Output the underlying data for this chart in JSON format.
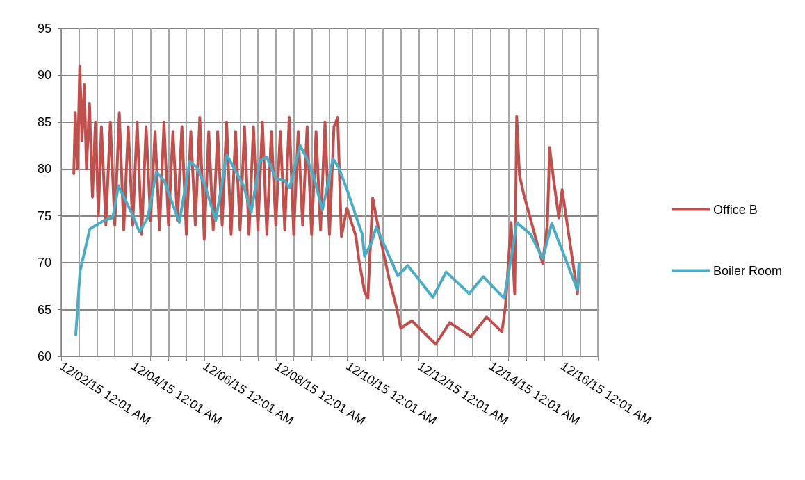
{
  "chart_data": {
    "type": "line",
    "legend": "right",
    "grid": true,
    "marker": "none",
    "line_style": "solid",
    "xlim": [
      "--12-02T00:01",
      "--12-17T00:01"
    ],
    "xticks": [
      {
        "value": "--12-02T00:01",
        "label": "12/02/15 12:01 AM"
      },
      {
        "value": "--12-02T12:01",
        "label": null
      },
      {
        "value": "--12-03T00:01",
        "label": null
      },
      {
        "value": "--12-03T12:01",
        "label": null
      },
      {
        "value": "--12-04T00:01",
        "label": "12/04/15 12:01 AM"
      },
      {
        "value": "--12-04T12:01",
        "label": null
      },
      {
        "value": "--12-05T00:01",
        "label": null
      },
      {
        "value": "--12-05T12:01",
        "label": null
      },
      {
        "value": "--12-06T00:01",
        "label": "12/06/15 12:01 AM"
      },
      {
        "value": "--12-06T12:01",
        "label": null
      },
      {
        "value": "--12-07T00:01",
        "label": null
      },
      {
        "value": "--12-07T12:01",
        "label": null
      },
      {
        "value": "--12-08T00:01",
        "label": "12/08/15 12:01 AM"
      },
      {
        "value": "--12-08T12:01",
        "label": null
      },
      {
        "value": "--12-09T00:01",
        "label": null
      },
      {
        "value": "--12-09T12:01",
        "label": null
      },
      {
        "value": "--12-10T00:01",
        "label": "12/10/15 12:01 AM"
      },
      {
        "value": "--12-10T12:01",
        "label": null
      },
      {
        "value": "--12-11T00:01",
        "label": null
      },
      {
        "value": "--12-11T12:01",
        "label": null
      },
      {
        "value": "--12-12T00:01",
        "label": "12/12/15 12:01 AM"
      },
      {
        "value": "--12-12T12:01",
        "label": null
      },
      {
        "value": "--12-13T00:01",
        "label": null
      },
      {
        "value": "--12-13T12:01",
        "label": null
      },
      {
        "value": "--12-14T00:01",
        "label": "12/14/15 12:01 AM"
      },
      {
        "value": "--12-14T12:01",
        "label": null
      },
      {
        "value": "--12-15T00:01",
        "label": null
      },
      {
        "value": "--12-15T12:01",
        "label": null
      },
      {
        "value": "--12-16T00:01",
        "label": "12/16/15 12:01 AM"
      },
      {
        "value": "--12-16T12:01",
        "label": null
      },
      {
        "value": "--12-17T00:01",
        "label": null
      }
    ],
    "ylim": [
      60,
      95
    ],
    "yticks": [
      60,
      65,
      70,
      75,
      80,
      85,
      90,
      95
    ],
    "series": [
      {
        "name": "Office B",
        "color": "#c0504d",
        "x": [
          "--12-02T08:30",
          "--12-02T09:30",
          "--12-02T11:00",
          "--12-02T12:30",
          "--12-02T14:00",
          "--12-02T15:30",
          "--12-02T17:00",
          "--12-02T19:00",
          "--12-02T21:00",
          "--12-02T23:00",
          "--12-03T01:00",
          "--12-03T03:00",
          "--12-03T06:00",
          "--12-03T09:00",
          "--12-03T12:00",
          "--12-03T15:00",
          "--12-03T18:00",
          "--12-03T21:00",
          "--12-04T00:00",
          "--12-04T03:00",
          "--12-04T06:00",
          "--12-04T09:00",
          "--12-04T12:00",
          "--12-04T15:00",
          "--12-04T18:00",
          "--12-04T21:00",
          "--12-05T00:00",
          "--12-05T03:00",
          "--12-05T06:00",
          "--12-05T09:00",
          "--12-05T12:00",
          "--12-05T15:00",
          "--12-05T18:00",
          "--12-05T21:00",
          "--12-06T00:00",
          "--12-06T03:00",
          "--12-06T06:00",
          "--12-06T09:00",
          "--12-06T12:00",
          "--12-06T15:00",
          "--12-06T18:00",
          "--12-06T21:00",
          "--12-07T00:00",
          "--12-07T03:00",
          "--12-07T06:00",
          "--12-07T09:00",
          "--12-07T12:00",
          "--12-07T15:00",
          "--12-07T18:00",
          "--12-07T21:00",
          "--12-08T00:00",
          "--12-08T03:00",
          "--12-08T06:00",
          "--12-08T09:00",
          "--12-08T12:00",
          "--12-08T15:00",
          "--12-08T18:00",
          "--12-08T21:00",
          "--12-09T00:00",
          "--12-09T03:00",
          "--12-09T06:00",
          "--12-09T09:00",
          "--12-09T12:00",
          "--12-09T15:00",
          "--12-09T17:30",
          "--12-09T20:00",
          "--12-09T23:45",
          "--12-10T05:45",
          "--12-10T07:40",
          "--12-10T11:30",
          "--12-10T13:45",
          "--12-10T17:00",
          "--12-10T21:50",
          "--12-11T03:50",
          "--12-11T08:40",
          "--12-11T11:50",
          "--12-11T19:15",
          "--12-12T11:15",
          "--12-12T20:40",
          "--12-13T10:45",
          "--12-13T21:25",
          "--12-14T07:40",
          "--12-14T10:05",
          "--12-14T13:50",
          "--12-14T16:15",
          "--12-14T17:35",
          "--12-14T19:30",
          "--12-14T22:20",
          "--12-15T11:00",
          "--12-15T14:10",
          "--12-15T15:40",
          "--12-15T18:00",
          "--12-15T21:50",
          "--12-16T00:05",
          "--12-16T10:20",
          "--12-16T11:20"
        ],
        "values": [
          79.5,
          86,
          80,
          91,
          83,
          89,
          80,
          87,
          77,
          85,
          75,
          84.5,
          74,
          85,
          74,
          86,
          73.5,
          84.5,
          74,
          85,
          73,
          84.5,
          74.5,
          84,
          73.5,
          85,
          74,
          84,
          74.5,
          84.5,
          73,
          84,
          74,
          85.5,
          72.5,
          84,
          73.5,
          84,
          74,
          85,
          73,
          84,
          73.5,
          84.5,
          73,
          84.5,
          73.5,
          85,
          73,
          84,
          74,
          84,
          73.5,
          85.5,
          73,
          84,
          74,
          84.5,
          73,
          84,
          73.5,
          85,
          73,
          84.5,
          85.5,
          72.8,
          75.8,
          72.8,
          70.4,
          66.9,
          66.2,
          76.9,
          72.8,
          68.4,
          65.4,
          63,
          63.8,
          61.3,
          63.6,
          62.1,
          64.2,
          62.6,
          65.4,
          74.3,
          66.7,
          85.6,
          79.3,
          77.3,
          69.9,
          74.1,
          82.3,
          79.3,
          74.8,
          77.8,
          66.7,
          68.9
        ]
      },
      {
        "name": "Boiler Room",
        "color": "#4bacc6",
        "x": [
          "--12-02T09:50",
          "--12-02T12:40",
          "--12-02T19:15",
          "--12-03T04:35",
          "--12-03T10:40",
          "--12-03T14:25",
          "--12-03T23:20",
          "--12-04T04:30",
          "--12-04T10:10",
          "--12-04T15:50",
          "--12-04T20:55",
          "--12-05T01:35",
          "--12-05T07:15",
          "--12-05T14:15",
          "--12-05T18:55",
          "--12-06T01:00",
          "--12-06T07:40",
          "--12-06T15:05",
          "--12-06T19:40",
          "--12-07T02:20",
          "--12-07T07:30",
          "--12-07T13:10",
          "--12-07T17:50",
          "--12-08T00:00",
          "--12-08T05:35",
          "--12-08T09:20",
          "--12-08T16:20",
          "--12-08T20:35",
          "--12-09T01:15",
          "--12-09T07:15",
          "--12-09T14:20",
          "--12-09T18:05",
          "--12-09T23:45",
          "--12-10T10:00",
          "--12-10T11:30",
          "--12-10T16:05",
          "--12-10T19:25",
          "--12-11T09:50",
          "--12-11T16:30",
          "--12-12T09:20",
          "--12-12T18:15",
          "--12-13T09:45",
          "--12-13T19:10",
          "--12-14T09:10",
          "--12-14T14:50",
          "--12-14T17:35",
          "--12-15T03:05",
          "--12-15T11:00",
          "--12-15T17:05",
          "--12-16T10:20",
          "--12-16T11:20"
        ],
        "values": [
          62.3,
          69.1,
          73.6,
          74.5,
          74.8,
          78.2,
          75.3,
          73.3,
          74.8,
          79.7,
          78.8,
          76.8,
          74.3,
          80.8,
          80.2,
          78,
          74.5,
          81.5,
          80.2,
          78.2,
          75.4,
          80.8,
          81.3,
          79,
          78.8,
          78,
          82.5,
          81.2,
          79.3,
          75.6,
          81.1,
          80.2,
          77.8,
          73,
          70.7,
          72.1,
          73.8,
          68.6,
          69.7,
          66.3,
          69,
          66.7,
          68.5,
          66.2,
          71.4,
          74.3,
          73,
          70.4,
          74.2,
          67.1,
          69.9
        ]
      }
    ]
  }
}
